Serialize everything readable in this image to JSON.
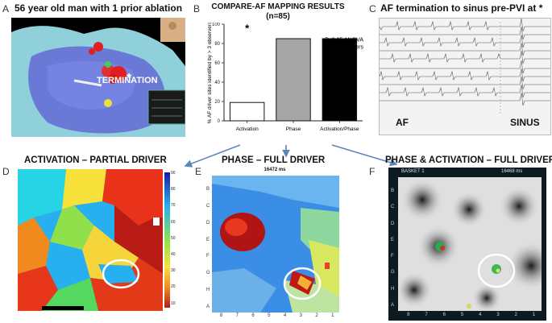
{
  "panels": {
    "A": {
      "letter": "A",
      "title": "56 year old man with 1 prior ablation",
      "annotation": "TERMINATION"
    },
    "B": {
      "letter": "B"
    },
    "C": {
      "letter": "C",
      "title": "AF termination to sinus pre-PVI at *",
      "left_label": "AF",
      "right_label": "SINUS"
    },
    "D": {
      "letter": "D",
      "title": "ACTIVATION – PARTIAL DRIVER"
    },
    "E": {
      "letter": "E",
      "title": "PHASE – FULL DRIVER",
      "timestamp": "16472 ms"
    },
    "F": {
      "letter": "F",
      "title": "PHASE & ACTIVATION – FULL DRIVER",
      "basket_label": "BASKET 1",
      "timestamp": "16468 ms"
    }
  },
  "chart_data": {
    "type": "bar",
    "title": "COMPARE-AF MAPPING RESULTS",
    "subtitle": "(n=85)",
    "ylabel": "% AF driver sites identified by > 3 observers",
    "categories": [
      "Activation",
      "Phase",
      "Activation/Phase"
    ],
    "values": [
      19,
      85,
      85
    ],
    "bar_colors": [
      "#ffffff",
      "#a6a6a6",
      "#000000"
    ],
    "ylim": [
      0,
      100
    ],
    "yticks": [
      0,
      20,
      40,
      60,
      80,
      100
    ],
    "annotation": "P<0.05 ANOVA vs. others",
    "significance_marker": "*"
  },
  "colorbar_ticks": [
    "90",
    "80",
    "70",
    "60",
    "50",
    "40",
    "30",
    "20",
    "10"
  ],
  "grid_row_labels": [
    "B",
    "C",
    "D",
    "E",
    "F",
    "G",
    "H",
    "A"
  ],
  "grid_col_labels": [
    "8",
    "7",
    "6",
    "5",
    "4",
    "3",
    "2",
    "1"
  ]
}
